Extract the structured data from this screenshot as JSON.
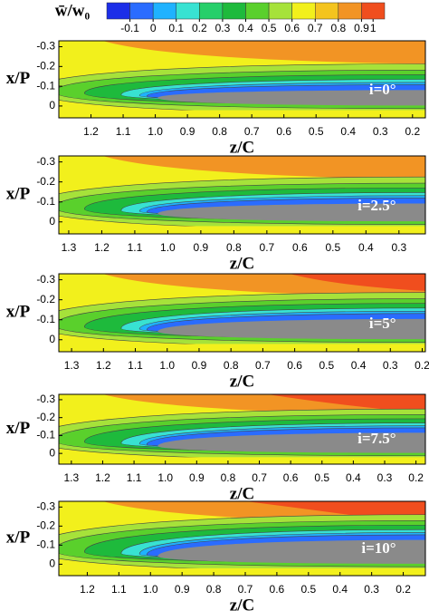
{
  "colorbar": {
    "title": "w̄/w₀",
    "levels": [
      -0.1,
      0,
      0.1,
      0.2,
      0.3,
      0.4,
      0.5,
      0.6,
      0.7,
      0.8,
      0.9,
      1
    ],
    "colors": [
      "#1c2ee8",
      "#2a6cff",
      "#1fb2ff",
      "#38e2d2",
      "#26cf6a",
      "#1eba3c",
      "#5ad02c",
      "#a6e23a",
      "#f2f01c",
      "#f4c41e",
      "#f29424",
      "#f04e1e"
    ]
  },
  "chart_data": [
    {
      "type": "contour",
      "annotation": "i=0°",
      "xlabel": "z/C",
      "ylabel": "x/P",
      "xlim": [
        1.3,
        0.16
      ],
      "ylim": [
        0.06,
        -0.33
      ],
      "xticks": [
        1.2,
        1.1,
        {
          "value": 1,
          "label": "1.0"
        },
        0.9,
        0.8,
        0.7,
        0.6,
        0.5,
        0.4,
        0.3,
        0.2
      ],
      "yticks": [
        -0.3,
        -0.2,
        -0.1,
        0
      ]
    },
    {
      "type": "contour",
      "annotation": "i=2.5°",
      "xlabel": "z/C",
      "ylabel": "x/P",
      "xlim": [
        1.33,
        0.22
      ],
      "ylim": [
        0.06,
        -0.33
      ],
      "xticks": [
        1.3,
        1.2,
        1.1,
        {
          "value": 1,
          "label": "1.0"
        },
        0.9,
        0.8,
        0.7,
        0.6,
        0.5,
        0.4,
        0.3
      ],
      "yticks": [
        -0.3,
        -0.2,
        -0.1,
        0
      ]
    },
    {
      "type": "contour",
      "annotation": "i=5°",
      "xlabel": "z/C",
      "ylabel": "x/P",
      "xlim": [
        1.34,
        0.19
      ],
      "ylim": [
        0.06,
        -0.33
      ],
      "xticks": [
        1.3,
        1.2,
        1.1,
        {
          "value": 1,
          "label": "1.0"
        },
        0.9,
        0.8,
        0.7,
        0.6,
        0.5,
        0.4,
        0.3,
        0.2
      ],
      "yticks": [
        -0.3,
        -0.2,
        -0.1,
        0
      ]
    },
    {
      "type": "contour",
      "annotation": "i=7.5°",
      "xlabel": "z/C",
      "ylabel": "x/P",
      "xlim": [
        1.34,
        0.17
      ],
      "ylim": [
        0.06,
        -0.33
      ],
      "xticks": [
        1.3,
        1.2,
        1.1,
        {
          "value": 1,
          "label": "1.0"
        },
        0.9,
        0.8,
        0.7,
        0.6,
        0.5,
        0.4,
        0.3,
        0.2
      ],
      "yticks": [
        -0.3,
        -0.2,
        -0.1,
        0
      ]
    },
    {
      "type": "contour",
      "annotation": "i=10°",
      "xlabel": "z/C",
      "ylabel": "x/P",
      "xlim": [
        1.29,
        0.13
      ],
      "ylim": [
        0.06,
        -0.33
      ],
      "xticks": [
        1.2,
        1.1,
        {
          "value": 1,
          "label": "1.0"
        },
        0.9,
        0.8,
        0.7,
        0.6,
        0.5,
        0.4,
        0.3,
        0.2
      ],
      "yticks": [
        -0.3,
        -0.2,
        -0.1,
        0
      ]
    }
  ]
}
